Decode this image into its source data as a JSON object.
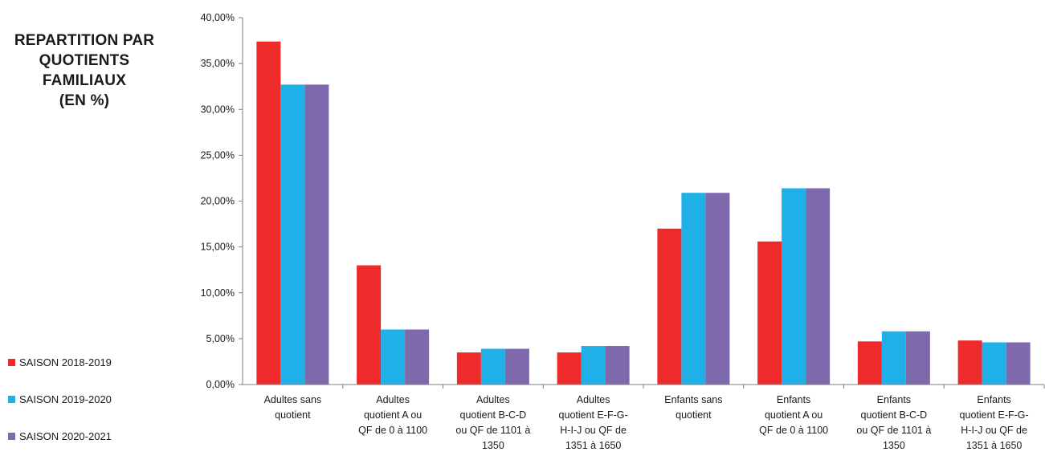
{
  "chart_data": {
    "type": "bar",
    "title": [
      "REPARTITION PAR",
      "QUOTIENTS",
      "FAMILIAUX",
      "(EN %)"
    ],
    "categories": [
      [
        "Adultes sans",
        "quotient"
      ],
      [
        "Adultes",
        "quotient A ou",
        "QF de 0 à 1100"
      ],
      [
        "Adultes",
        "quotient B-C-D",
        "ou QF de 1101 à",
        "1350"
      ],
      [
        "Adultes",
        "quotient E-F-G-",
        "H-I-J ou QF de",
        "1351 à 1650"
      ],
      [
        "Enfants sans",
        "quotient"
      ],
      [
        "Enfants",
        "quotient A ou",
        "QF de 0 à 1100"
      ],
      [
        "Enfants",
        "quotient B-C-D",
        "ou QF de 1101 à",
        "1350"
      ],
      [
        "Enfants",
        "quotient E-F-G-",
        "H-I-J ou QF de",
        "1351 à 1650"
      ]
    ],
    "series": [
      {
        "name": "SAISON 2018-2019",
        "color": "#ee2a2a",
        "values": [
          37.4,
          13.0,
          3.5,
          3.5,
          17.0,
          15.6,
          4.7,
          4.8
        ]
      },
      {
        "name": "SAISON 2019-2020",
        "color": "#1fb0e8",
        "values": [
          32.7,
          6.0,
          3.9,
          4.2,
          20.9,
          21.4,
          5.8,
          4.6
        ]
      },
      {
        "name": "SAISON 2020-2021",
        "color": "#7e69ac",
        "values": [
          32.7,
          6.0,
          3.9,
          4.2,
          20.9,
          21.4,
          5.8,
          4.6
        ]
      }
    ],
    "yticks": [
      "0,00%",
      "5,00%",
      "10,00%",
      "15,00%",
      "20,00%",
      "25,00%",
      "30,00%",
      "35,00%",
      "40,00%"
    ],
    "ylim": [
      0,
      40
    ],
    "grid": false,
    "legend_position": "bottom-left"
  }
}
